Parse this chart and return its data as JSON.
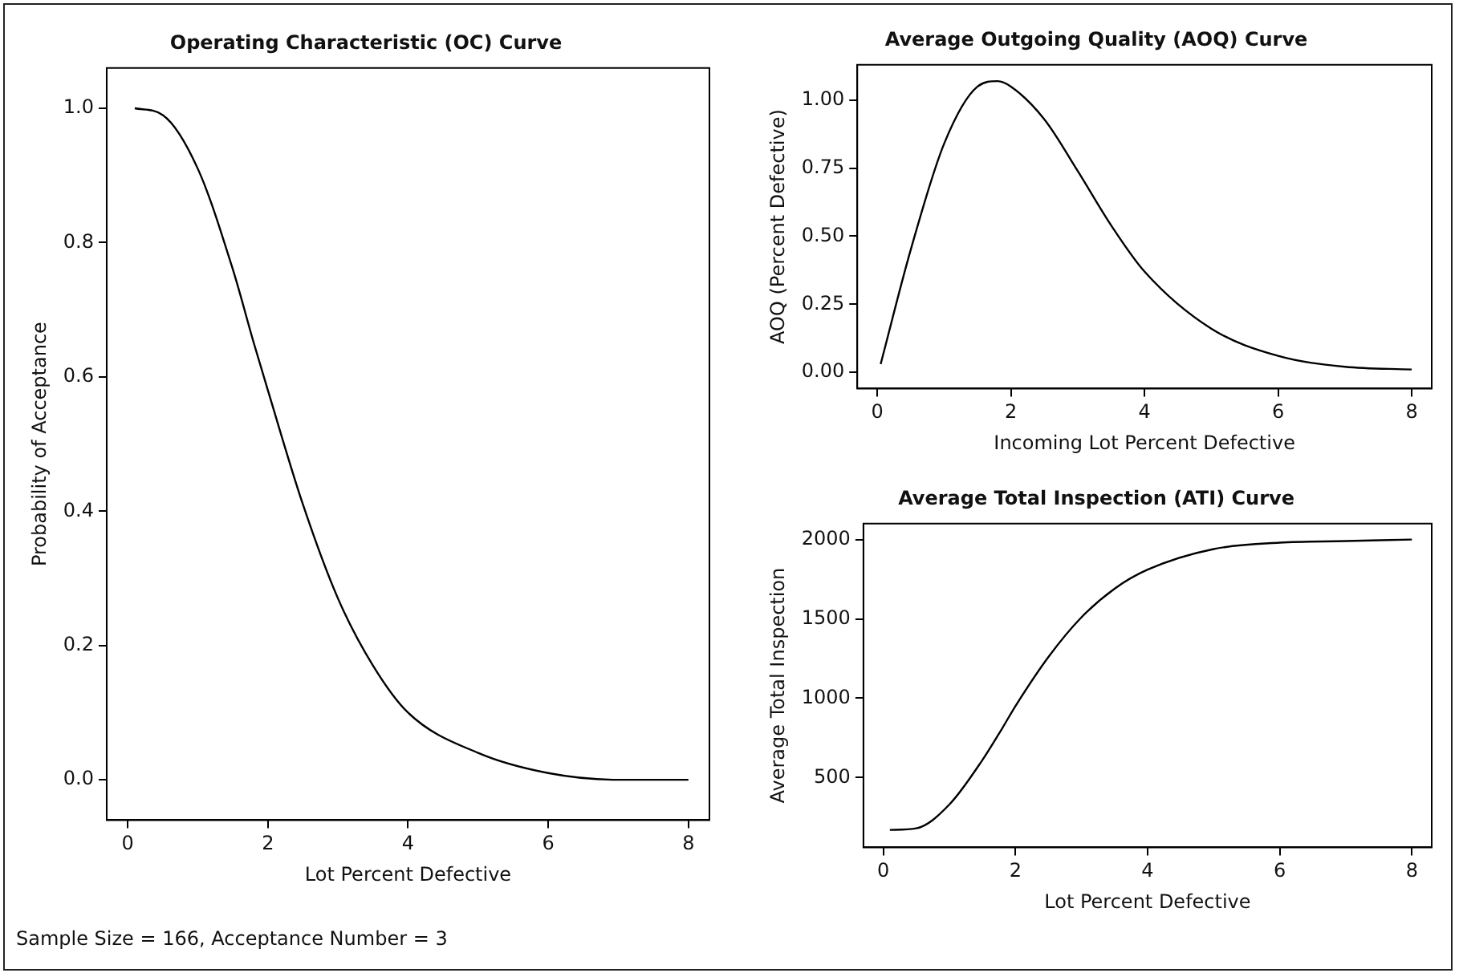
{
  "chart_data": [
    {
      "type": "line",
      "title": "Operating Characteristic (OC) Curve",
      "xlabel": "Lot Percent Defective",
      "ylabel": "Probability of Acceptance",
      "x": [
        0.1,
        0.5,
        1,
        1.5,
        1.8,
        2,
        2.5,
        3,
        3.5,
        4,
        5,
        6,
        7,
        8
      ],
      "values": [
        1.0,
        0.99,
        0.91,
        0.76,
        0.65,
        0.58,
        0.41,
        0.27,
        0.17,
        0.1,
        0.04,
        0.01,
        0.0,
        0.0
      ],
      "color": "#000000",
      "xlim": [
        -0.3,
        8.3
      ],
      "xticks": [
        0,
        2,
        4,
        6,
        8
      ],
      "ylim": [
        -0.06,
        1.06
      ],
      "yticks": [
        {
          "value": 0,
          "label": "0.0"
        },
        0.2,
        0.4,
        0.6,
        0.8,
        {
          "value": 1,
          "label": "1.0"
        }
      ],
      "grid": false,
      "marker": "none",
      "annotations": [
        "Sample Size = 166, Acceptance Number = 3"
      ]
    },
    {
      "type": "line",
      "title": "Average Outgoing Quality (AOQ) Curve",
      "xlabel": "Incoming Lot Percent Defective",
      "ylabel": "AOQ (Percent Defective)",
      "x": [
        0.05,
        0.5,
        1,
        1.5,
        1.8,
        2,
        2.5,
        3,
        3.5,
        4,
        5,
        6,
        7,
        8
      ],
      "values": [
        0.03,
        0.45,
        0.84,
        1.05,
        1.07,
        1.05,
        0.93,
        0.74,
        0.54,
        0.37,
        0.16,
        0.06,
        0.02,
        0.01
      ],
      "color": "#000000",
      "xlim": [
        -0.3,
        8.3
      ],
      "xticks": [
        0,
        2,
        4,
        6,
        8
      ],
      "ylim": [
        -0.06,
        1.13
      ],
      "yticks": [
        {
          "value": 0,
          "label": "0.00"
        },
        0.25,
        {
          "value": 0.5,
          "label": "0.50"
        },
        0.75,
        {
          "value": 1,
          "label": "1.00"
        }
      ],
      "grid": false,
      "marker": "none"
    },
    {
      "type": "line",
      "title": "Average Total Inspection (ATI) Curve",
      "xlabel": "Lot Percent Defective",
      "ylabel": "Average Total Inspection",
      "x": [
        0.1,
        0.5,
        1,
        1.5,
        1.8,
        2,
        2.5,
        3,
        3.5,
        4,
        5,
        6,
        7,
        8
      ],
      "values": [
        170,
        180,
        330,
        610,
        810,
        950,
        1260,
        1510,
        1690,
        1810,
        1940,
        1980,
        1990,
        2000
      ],
      "color": "#000000",
      "xlim": [
        -0.3,
        8.3
      ],
      "xticks": [
        0,
        2,
        4,
        6,
        8
      ],
      "ylim": [
        60,
        2100
      ],
      "yticks": [
        500,
        1000,
        1500,
        2000
      ],
      "grid": false,
      "marker": "none"
    }
  ]
}
